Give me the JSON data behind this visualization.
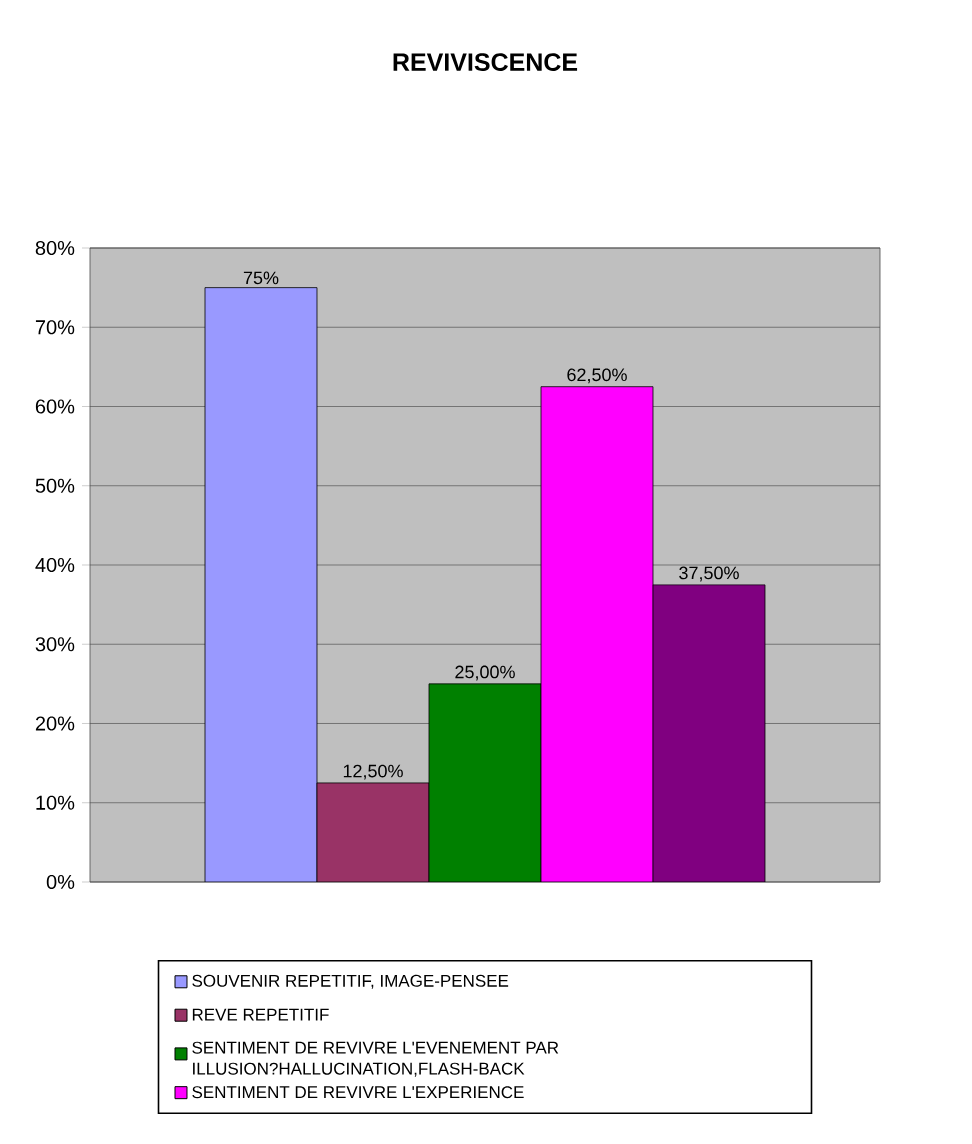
{
  "chart_data": {
    "type": "bar",
    "title": "REVIVISCENCE",
    "categories": [
      null
    ],
    "series": [
      {
        "name": "SOUVENIR REPETITIF, IMAGE-PENSEE",
        "color": "#9999ff",
        "values": [
          75
        ],
        "value_labels": [
          "75%"
        ]
      },
      {
        "name": "REVE REPETITIF",
        "color": "#993366",
        "values": [
          12.5
        ],
        "value_labels": [
          "12,50%"
        ]
      },
      {
        "name": "SENTIMENT DE REVIVRE L'EVENEMENT PAR ILLUSION?HALLUCINATION,FLASH-BACK",
        "color": "#008000",
        "values": [
          25
        ],
        "value_labels": [
          "25,00%"
        ]
      },
      {
        "name": "SENTIMENT DE REVIVRE L'EXPERIENCE",
        "color": "#ff00ff",
        "values": [
          62.5
        ],
        "value_labels": [
          "62,50%"
        ]
      },
      {
        "color": "#800080",
        "values": [
          37.5
        ],
        "value_labels": [
          "37,50%"
        ]
      }
    ],
    "ylim": [
      0,
      80
    ],
    "yticks": [
      {
        "value": 0,
        "label": "0%"
      },
      {
        "value": 10,
        "label": "10%"
      },
      {
        "value": 20,
        "label": "20%"
      },
      {
        "value": 30,
        "label": "30%"
      },
      {
        "value": 40,
        "label": "40%"
      },
      {
        "value": 50,
        "label": "50%"
      },
      {
        "value": 60,
        "label": "60%"
      },
      {
        "value": 70,
        "label": "70%"
      },
      {
        "value": 80,
        "label": "80%"
      }
    ],
    "grid": "y",
    "legend": "bottom"
  }
}
